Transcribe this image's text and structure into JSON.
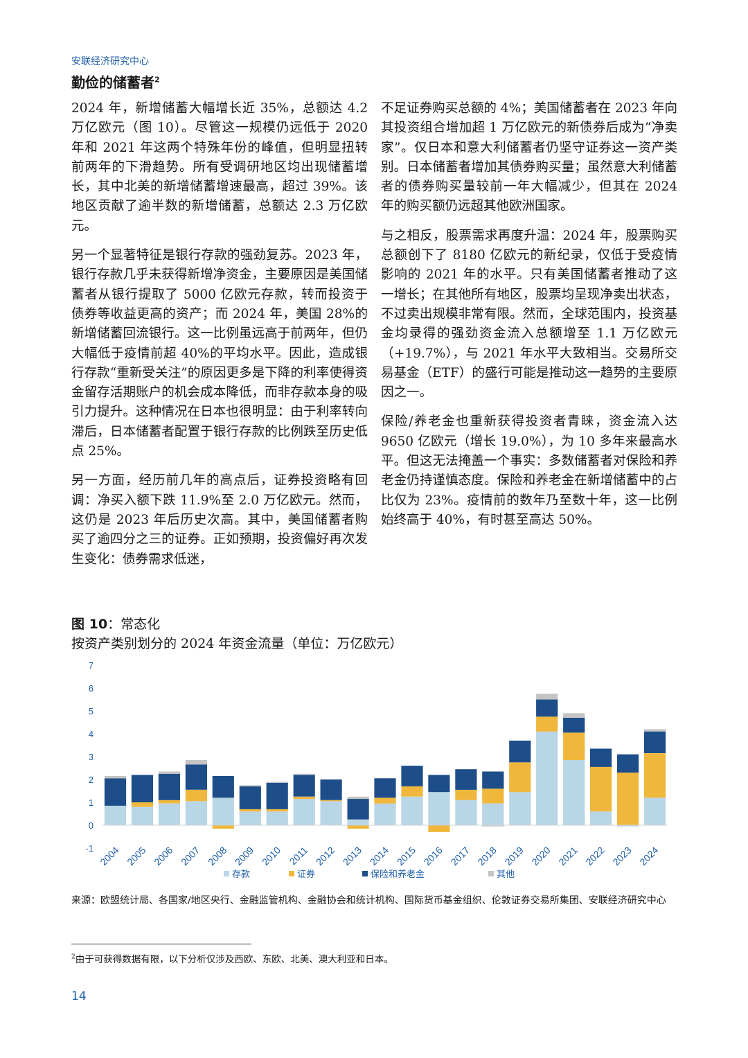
{
  "header": {
    "org": "安联经济研究中心"
  },
  "section": {
    "title": "勤俭的储蓄者",
    "footnote_ref": "2"
  },
  "body": {
    "left": [
      "2024 年，新增储蓄大幅增长近 35%，总额达 4.2 万亿欧元（图 10）。尽管这一规模仍远低于 2020 年和 2021 年这两个特殊年份的峰值，但明显扭转前两年的下滑趋势。所有受调研地区均出现储蓄增长，其中北美的新增储蓄增速最高，超过 39%。该地区贡献了逾半数的新增储蓄，总额达 2.3 万亿欧元。",
      "另一个显著特征是银行存款的强劲复苏。2023 年，银行存款几乎未获得新增净资金，主要原因是美国储蓄者从银行提取了 5000 亿欧元存款，转而投资于债券等收益更高的资产；而 2024 年，美国 28%的新增储蓄回流银行。这一比例虽远高于前两年，但仍大幅低于疫情前超 40%的平均水平。因此，造成银行存款“重新受关注”的原因更多是下降的利率使得资金留存活期账户的机会成本降低，而非存款本身的吸引力提升。这种情况在日本也很明显：由于利率转向滞后，日本储蓄者配置于银行存款的比例跌至历史低点 25%。",
      "另一方面，经历前几年的高点后，证券投资略有回调：净买入额下跌 11.9%至 2.0 万亿欧元。然而，这仍是 2023 年后历史次高。其中，美国储蓄者购买了逾四分之三的证券。正如预期，投资偏好再次发生变化：债券需求低迷，"
    ],
    "right": [
      "不足证券购买总额的 4%；美国储蓄者在 2023 年向其投资组合增加超 1 万亿欧元的新债券后成为“净卖家”。仅日本和意大利储蓄者仍坚守证券这一资产类别。日本储蓄者增加其债券购买量；虽然意大利储蓄者的债券购买量较前一年大幅减少，但其在 2024 年的购买额仍远超其他欧洲国家。",
      "与之相反，股票需求再度升温：2024 年，股票购买总额创下了 8180 亿欧元的新纪录，仅低于受疫情影响的 2021 年的水平。只有美国储蓄者推动了这一增长；在其他所有地区，股票均呈现净卖出状态，不过卖出规模非常有限。然而，全球范围内，投资基金均录得的强劲资金流入总额增至 1.1 万亿欧元（+19.7%），与 2021 年水平大致相当。交易所交易基金（ETF）的盛行可能是推动这一趋势的主要原因之一。",
      "保险/养老金也重新获得投资者青睐，资金流入达 9650 亿欧元（增长 19.0%），为 10 多年来最高水平。但这无法掩盖一个事实：多数储蓄者对保险和养老金仍持谨慎态度。保险和养老金在新增储蓄中的占比仅为 23%。疫情前的数年乃至数十年，这一比例始终高于 40%，有时甚至高达 50%。"
    ]
  },
  "figure": {
    "label": "图 10",
    "sep": "：",
    "name": "常态化",
    "subtitle": "按资产类别划分的 2024 年资金流量（单位：万亿欧元）"
  },
  "chart_data": {
    "type": "bar",
    "stacked": true,
    "categories": [
      "2004",
      "2005",
      "2006",
      "2007",
      "2008",
      "2009",
      "2010",
      "2011",
      "2012",
      "2013",
      "2014",
      "2015",
      "2016",
      "2017",
      "2018",
      "2019",
      "2020",
      "2021",
      "2022",
      "2023",
      "2024"
    ],
    "series": [
      {
        "name": "存款",
        "color": "#b8d6e6",
        "values": [
          0.85,
          0.8,
          0.95,
          1.05,
          1.2,
          0.6,
          0.6,
          1.15,
          1.05,
          0.25,
          0.95,
          1.25,
          1.45,
          1.1,
          0.95,
          1.45,
          4.1,
          2.85,
          0.6,
          -0.05,
          1.2
        ]
      },
      {
        "name": "证券",
        "color": "#f0b73d",
        "values": [
          0.0,
          0.2,
          0.15,
          0.5,
          -0.15,
          0.1,
          0.1,
          0.1,
          0.05,
          -0.15,
          0.25,
          0.45,
          -0.3,
          0.45,
          0.65,
          1.3,
          0.65,
          1.2,
          1.95,
          2.3,
          1.95
        ]
      },
      {
        "name": "保险和养老金",
        "color": "#1d4e89",
        "values": [
          1.2,
          1.2,
          1.15,
          1.1,
          0.95,
          1.0,
          1.15,
          0.95,
          0.9,
          0.9,
          0.85,
          0.9,
          0.75,
          0.9,
          0.75,
          0.95,
          0.75,
          0.65,
          0.8,
          0.8,
          0.95
        ]
      },
      {
        "name": "其他",
        "color": "#c4c4c4",
        "values": [
          0.1,
          0.0,
          0.1,
          0.2,
          0.0,
          0.05,
          0.05,
          0.05,
          0.0,
          0.1,
          0.0,
          0.0,
          0.0,
          0.0,
          -0.05,
          0.0,
          0.25,
          0.2,
          0.0,
          0.0,
          0.1
        ]
      }
    ],
    "ylim": [
      -1,
      7
    ],
    "yticks": [
      -1,
      0,
      1,
      2,
      3,
      4,
      5,
      6,
      7
    ],
    "grid": false,
    "legend_position": "bottom"
  },
  "source": "来源：欧盟统计局、各国家/地区央行、金融监管机构、金融协会和统计机构、国际货币基金组织、伦敦证券交易所集团、安联经济研究中心",
  "footnote": {
    "ref": "2",
    "text": "由于可获得数据有限，以下分析仅涉及西欧、东欧、北美、澳大利亚和日本。"
  },
  "page_number": "14"
}
